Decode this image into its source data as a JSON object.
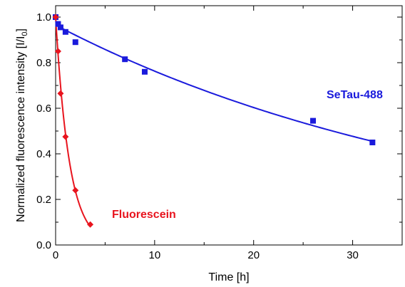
{
  "chart_data": {
    "type": "scatter",
    "xlabel": "Time [h]",
    "ylabel_text": "Normalized fluorescence intensity [I/I",
    "ylabel_sub": "0",
    "ylabel_close": "]",
    "xlim": [
      0,
      35
    ],
    "ylim": [
      0,
      1.05
    ],
    "x_ticks": [
      0,
      10,
      20,
      30
    ],
    "x_tick_labels": [
      "0",
      "10",
      "20",
      "30"
    ],
    "y_ticks": [
      0.0,
      0.2,
      0.4,
      0.6,
      0.8,
      1.0
    ],
    "y_tick_labels": [
      "0.0",
      "0.2",
      "0.4",
      "0.6",
      "0.8",
      "1.0"
    ],
    "grid": false,
    "series": [
      {
        "name": "SeTau-488",
        "color": "#1a1adc",
        "marker": "square",
        "points": [
          {
            "x": 0,
            "y": 1.0
          },
          {
            "x": 0.25,
            "y": 0.97
          },
          {
            "x": 0.5,
            "y": 0.955
          },
          {
            "x": 1.0,
            "y": 0.935
          },
          {
            "x": 2.0,
            "y": 0.89
          },
          {
            "x": 7.0,
            "y": 0.815
          },
          {
            "x": 9.0,
            "y": 0.76
          },
          {
            "x": 26.0,
            "y": 0.545
          },
          {
            "x": 32.0,
            "y": 0.45
          }
        ],
        "fit": {
          "a": 0.965,
          "k": 0.0235
        }
      },
      {
        "name": "Fluorescein",
        "color": "#e8141e",
        "marker": "diamond",
        "points": [
          {
            "x": 0,
            "y": 1.0
          },
          {
            "x": 0.25,
            "y": 0.85
          },
          {
            "x": 0.5,
            "y": 0.665
          },
          {
            "x": 1.0,
            "y": 0.475
          },
          {
            "x": 2.0,
            "y": 0.24
          },
          {
            "x": 3.5,
            "y": 0.09
          }
        ],
        "fit": {
          "a": 1.0,
          "k": 0.72
        }
      }
    ]
  }
}
